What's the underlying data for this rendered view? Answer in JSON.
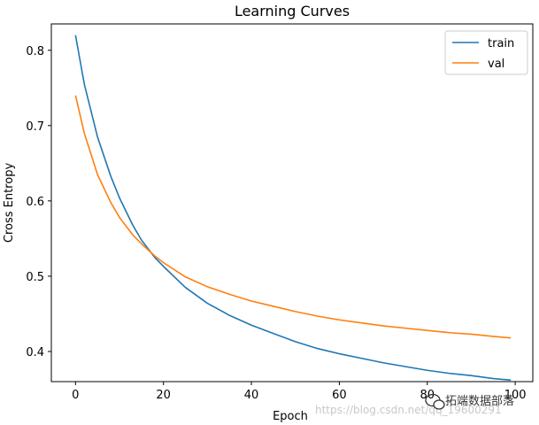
{
  "chart_data": {
    "type": "line",
    "title": "Learning Curves",
    "xlabel": "Epoch",
    "ylabel": "Cross Entropy",
    "xlim": [
      -5.5,
      104
    ],
    "ylim": [
      0.36,
      0.835
    ],
    "xticks": [
      0,
      20,
      40,
      60,
      80,
      100
    ],
    "xtick_labels": [
      "0",
      "20",
      "40",
      "60",
      "80",
      "100"
    ],
    "yticks": [
      0.4,
      0.5,
      0.6,
      0.7,
      0.8
    ],
    "ytick_labels": [
      "0.4",
      "0.5",
      "0.6",
      "0.7",
      "0.8"
    ],
    "legend_position": "top-right",
    "grid": false,
    "series": [
      {
        "name": "train",
        "color": "#1f77b4",
        "x": [
          0,
          2,
          5,
          8,
          10,
          13,
          15,
          18,
          20,
          25,
          30,
          35,
          40,
          45,
          50,
          55,
          60,
          65,
          70,
          75,
          80,
          85,
          90,
          95,
          99
        ],
        "y": [
          0.82,
          0.755,
          0.685,
          0.633,
          0.604,
          0.568,
          0.548,
          0.525,
          0.513,
          0.485,
          0.464,
          0.448,
          0.435,
          0.424,
          0.413,
          0.404,
          0.397,
          0.391,
          0.385,
          0.38,
          0.375,
          0.371,
          0.368,
          0.364,
          0.362
        ]
      },
      {
        "name": "val",
        "color": "#ff7f0e",
        "x": [
          0,
          2,
          5,
          8,
          10,
          13,
          15,
          18,
          20,
          25,
          30,
          35,
          40,
          45,
          50,
          55,
          60,
          65,
          70,
          75,
          80,
          85,
          90,
          95,
          99
        ],
        "y": [
          0.74,
          0.69,
          0.635,
          0.598,
          0.578,
          0.555,
          0.543,
          0.527,
          0.518,
          0.499,
          0.486,
          0.476,
          0.467,
          0.46,
          0.453,
          0.447,
          0.442,
          0.438,
          0.434,
          0.431,
          0.428,
          0.425,
          0.423,
          0.42,
          0.418
        ]
      }
    ]
  },
  "watermark": {
    "text": "拓端数据部落",
    "url": "https://blog.csdn.net/qq_19600291"
  }
}
